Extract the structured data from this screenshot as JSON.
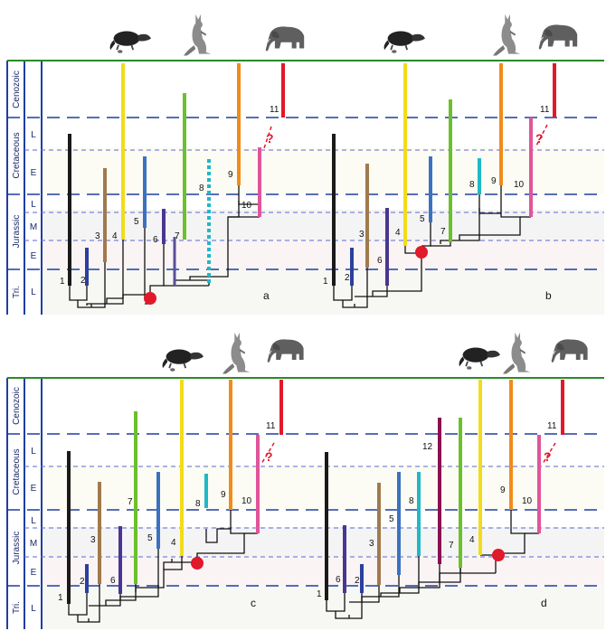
{
  "time_scale": {
    "periods": [
      "Cenozoic",
      "Cretaceous",
      "Jurassic",
      "Tri."
    ],
    "epochs": [
      "L",
      "E",
      "L",
      "M",
      "E",
      "L"
    ]
  },
  "question_mark": "?",
  "icons": [
    "platypus-icon",
    "kangaroo-icon",
    "elephant-icon"
  ],
  "colors": {
    "frame_blue": "#1f3f9f",
    "top_line_green": "#2a8a2a",
    "node_red": "#e0192b",
    "lineage_1": "#1a1a1a",
    "lineage_2": "#2b3f9e",
    "lineage_3": "#a07a4d",
    "lineage_4": "#f2dc1a",
    "lineage_5": "#3a72c0",
    "lineage_6": "#4a3690",
    "lineage_7": "#6cc02b",
    "lineage_8": "#1fb8c8",
    "lineage_9": "#f08c1a",
    "lineage_10": "#e0559a",
    "lineage_11": "#e0192b",
    "lineage_12": "#8a1050"
  },
  "panels": [
    {
      "id": "a",
      "label": "a",
      "lineages": [
        "1",
        "2",
        "3",
        "4",
        "5",
        "6",
        "7",
        "8",
        "9",
        "10",
        "11"
      ]
    },
    {
      "id": "b",
      "label": "b",
      "lineages": [
        "1",
        "2",
        "3",
        "6",
        "4",
        "5",
        "7",
        "8",
        "9",
        "10",
        "11"
      ]
    },
    {
      "id": "c",
      "label": "c",
      "lineages": [
        "1",
        "2",
        "6",
        "3",
        "7",
        "5",
        "4",
        "8",
        "9",
        "10",
        "11"
      ]
    },
    {
      "id": "d",
      "label": "d",
      "lineages": [
        "1",
        "6",
        "2",
        "3",
        "5",
        "8",
        "12",
        "7",
        "4",
        "9",
        "10",
        "11"
      ]
    }
  ]
}
